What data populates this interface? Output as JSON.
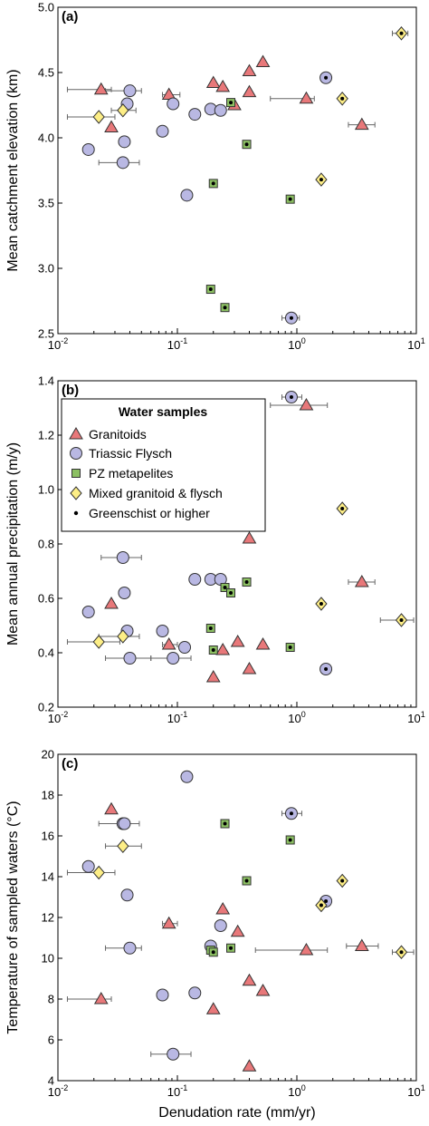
{
  "colors": {
    "granitoids": "#e8787a",
    "triassic": "#b9b8e3",
    "pz": "#8cc063",
    "mixed": "#fdee86",
    "stroke": "#333333",
    "errorbar": "#666666"
  },
  "chart_data": [
    {
      "type": "scatter",
      "panel_label": "(a)",
      "xlabel": "",
      "ylabel": "Mean catchment elevation (km)",
      "xscale": "log",
      "xlim": [
        0.01,
        10
      ],
      "ylim": [
        2.5,
        5.0
      ],
      "yticks": [
        2.5,
        3.0,
        3.5,
        4.0,
        4.5,
        5.0
      ],
      "ytick_labels": [
        "2.5",
        "3.0",
        "3.5",
        "4.0",
        "4.5",
        "5.0"
      ],
      "xtick_labels": [
        {
          "mantissa": "10",
          "exponent": "-2"
        },
        {
          "mantissa": "10",
          "exponent": "-1"
        },
        {
          "mantissa": "10",
          "exponent": "0"
        },
        {
          "mantissa": "10",
          "exponent": "1"
        }
      ],
      "series": [
        {
          "name": "Granitoids",
          "marker": "triangle",
          "points": [
            {
              "x": 0.023,
              "y": 4.37,
              "xlo": 0.012,
              "xhi": 0.028
            },
            {
              "x": 0.028,
              "y": 4.08
            },
            {
              "x": 0.085,
              "y": 4.33,
              "xlo": 0.075,
              "xhi": 0.105
            },
            {
              "x": 0.2,
              "y": 4.42
            },
            {
              "x": 0.24,
              "y": 4.39
            },
            {
              "x": 0.3,
              "y": 4.25
            },
            {
              "x": 0.4,
              "y": 4.51
            },
            {
              "x": 0.4,
              "y": 4.35
            },
            {
              "x": 0.52,
              "y": 4.58
            },
            {
              "x": 1.2,
              "y": 4.3,
              "xlo": 0.6,
              "xhi": 1.4
            },
            {
              "x": 3.5,
              "y": 4.1,
              "xlo": 2.7,
              "xhi": 4.5
            }
          ]
        },
        {
          "name": "Triassic Flysch",
          "marker": "circle",
          "points": [
            {
              "x": 0.018,
              "y": 3.91
            },
            {
              "x": 0.035,
              "y": 3.81,
              "xlo": 0.022,
              "xhi": 0.048
            },
            {
              "x": 0.036,
              "y": 3.97
            },
            {
              "x": 0.038,
              "y": 4.26
            },
            {
              "x": 0.04,
              "y": 4.36,
              "xlo": 0.025,
              "xhi": 0.05
            },
            {
              "x": 0.075,
              "y": 4.05
            },
            {
              "x": 0.092,
              "y": 4.26
            },
            {
              "x": 0.12,
              "y": 3.56
            },
            {
              "x": 0.14,
              "y": 4.18
            },
            {
              "x": 0.19,
              "y": 4.22
            },
            {
              "x": 0.23,
              "y": 4.21
            },
            {
              "x": 0.9,
              "y": 2.62,
              "xlo": 0.75,
              "xhi": 1.05,
              "green": true
            },
            {
              "x": 1.75,
              "y": 4.46,
              "green": true
            }
          ]
        },
        {
          "name": "PZ metapelites",
          "marker": "square",
          "points": [
            {
              "x": 0.19,
              "y": 2.84,
              "green": true
            },
            {
              "x": 0.2,
              "y": 3.65,
              "green": true
            },
            {
              "x": 0.25,
              "y": 2.7,
              "green": true
            },
            {
              "x": 0.28,
              "y": 4.27,
              "green": true
            },
            {
              "x": 0.38,
              "y": 3.95,
              "green": true
            },
            {
              "x": 0.88,
              "y": 3.53,
              "green": true
            }
          ]
        },
        {
          "name": "Mixed granitoid & flysch",
          "marker": "diamond",
          "points": [
            {
              "x": 0.022,
              "y": 4.16,
              "xlo": 0.012,
              "xhi": 0.03
            },
            {
              "x": 0.035,
              "y": 4.21,
              "xlo": 0.028,
              "xhi": 0.045
            },
            {
              "x": 1.6,
              "y": 3.68,
              "green": true
            },
            {
              "x": 2.4,
              "y": 4.3,
              "green": true
            },
            {
              "x": 7.5,
              "y": 4.8,
              "xlo": 6.3,
              "xhi": 8.5,
              "green": true
            }
          ]
        }
      ]
    },
    {
      "type": "scatter",
      "panel_label": "(b)",
      "xlabel": "",
      "ylabel": "Mean annual precipitation (m/y)",
      "xscale": "log",
      "xlim": [
        0.01,
        10
      ],
      "ylim": [
        0.2,
        1.4
      ],
      "yticks": [
        0.2,
        0.4,
        0.6,
        0.8,
        1.0,
        1.2,
        1.4
      ],
      "ytick_labels": [
        "0.2",
        "0.4",
        "0.6",
        "0.8",
        "1.0",
        "1.2",
        "1.4"
      ],
      "xtick_labels": [
        {
          "mantissa": "10",
          "exponent": "-2"
        },
        {
          "mantissa": "10",
          "exponent": "-1"
        },
        {
          "mantissa": "10",
          "exponent": "0"
        },
        {
          "mantissa": "10",
          "exponent": "1"
        }
      ],
      "legend": {
        "title": "Water samples",
        "entries": [
          {
            "label": "Granitoids",
            "marker": "triangle"
          },
          {
            "label": "Triassic Flysch",
            "marker": "circle"
          },
          {
            "label": "PZ metapelites",
            "marker": "square"
          },
          {
            "label": "Mixed granitoid & flysch",
            "marker": "diamond"
          },
          {
            "label": "Greenschist or higher",
            "marker": "dot"
          }
        ]
      },
      "series": [
        {
          "name": "Granitoids",
          "marker": "triangle",
          "points": [
            {
              "x": 0.028,
              "y": 0.58
            },
            {
              "x": 0.085,
              "y": 0.43,
              "xlo": 0.075,
              "xhi": 0.1
            },
            {
              "x": 0.2,
              "y": 0.31
            },
            {
              "x": 0.24,
              "y": 0.41
            },
            {
              "x": 0.32,
              "y": 0.44
            },
            {
              "x": 0.4,
              "y": 0.34
            },
            {
              "x": 0.4,
              "y": 0.82
            },
            {
              "x": 0.52,
              "y": 0.43
            },
            {
              "x": 1.2,
              "y": 1.31,
              "xlo": 0.6,
              "xhi": 1.8
            },
            {
              "x": 3.5,
              "y": 0.66,
              "xlo": 2.7,
              "xhi": 4.5
            }
          ]
        },
        {
          "name": "Triassic Flysch",
          "marker": "circle",
          "points": [
            {
              "x": 0.018,
              "y": 0.55
            },
            {
              "x": 0.035,
              "y": 0.75,
              "xlo": 0.023,
              "xhi": 0.05
            },
            {
              "x": 0.036,
              "y": 0.62
            },
            {
              "x": 0.038,
              "y": 0.48
            },
            {
              "x": 0.04,
              "y": 0.38,
              "xlo": 0.025,
              "xhi": 0.06
            },
            {
              "x": 0.075,
              "y": 0.48
            },
            {
              "x": 0.092,
              "y": 0.38,
              "xlo": 0.06,
              "xhi": 0.13
            },
            {
              "x": 0.115,
              "y": 0.42
            },
            {
              "x": 0.14,
              "y": 0.67
            },
            {
              "x": 0.19,
              "y": 0.67
            },
            {
              "x": 0.23,
              "y": 0.67
            },
            {
              "x": 0.9,
              "y": 1.34,
              "xlo": 0.75,
              "xhi": 1.1,
              "green": true
            },
            {
              "x": 1.75,
              "y": 0.34,
              "green": true
            }
          ]
        },
        {
          "name": "PZ metapelites",
          "marker": "square",
          "points": [
            {
              "x": 0.19,
              "y": 0.49,
              "green": true
            },
            {
              "x": 0.2,
              "y": 0.41,
              "green": true
            },
            {
              "x": 0.25,
              "y": 0.64,
              "green": true
            },
            {
              "x": 0.28,
              "y": 0.62,
              "green": true
            },
            {
              "x": 0.38,
              "y": 0.66,
              "green": true
            },
            {
              "x": 0.88,
              "y": 0.42,
              "green": true
            }
          ]
        },
        {
          "name": "Mixed granitoid & flysch",
          "marker": "diamond",
          "points": [
            {
              "x": 0.022,
              "y": 0.44,
              "xlo": 0.012,
              "xhi": 0.033
            },
            {
              "x": 0.035,
              "y": 0.46,
              "xlo": 0.022,
              "xhi": 0.048
            },
            {
              "x": 1.6,
              "y": 0.58,
              "green": true
            },
            {
              "x": 2.4,
              "y": 0.93,
              "green": true
            },
            {
              "x": 7.5,
              "y": 0.52,
              "xlo": 5.0,
              "xhi": 9.5,
              "green": true
            }
          ]
        }
      ]
    },
    {
      "type": "scatter",
      "panel_label": "(c)",
      "xlabel": "Denudation rate (mm/yr)",
      "ylabel": "Temperature of sampled waters (°C)",
      "xscale": "log",
      "xlim": [
        0.01,
        10
      ],
      "ylim": [
        4,
        20
      ],
      "yticks": [
        4,
        6,
        8,
        10,
        12,
        14,
        16,
        18,
        20
      ],
      "ytick_labels": [
        "4",
        "6",
        "8",
        "10",
        "12",
        "14",
        "16",
        "18",
        "20"
      ],
      "xtick_labels": [
        {
          "mantissa": "10",
          "exponent": "-2"
        },
        {
          "mantissa": "10",
          "exponent": "-1"
        },
        {
          "mantissa": "10",
          "exponent": "0"
        },
        {
          "mantissa": "10",
          "exponent": "1"
        }
      ],
      "series": [
        {
          "name": "Granitoids",
          "marker": "triangle",
          "points": [
            {
              "x": 0.023,
              "y": 8.0,
              "xlo": 0.012,
              "xhi": 0.028
            },
            {
              "x": 0.028,
              "y": 17.3
            },
            {
              "x": 0.085,
              "y": 11.7,
              "xlo": 0.075,
              "xhi": 0.1
            },
            {
              "x": 0.2,
              "y": 7.5
            },
            {
              "x": 0.24,
              "y": 12.4
            },
            {
              "x": 0.32,
              "y": 11.3
            },
            {
              "x": 0.4,
              "y": 8.9
            },
            {
              "x": 0.4,
              "y": 4.7
            },
            {
              "x": 0.52,
              "y": 8.4
            },
            {
              "x": 1.2,
              "y": 10.4,
              "xlo": 0.45,
              "xhi": 1.8
            },
            {
              "x": 3.5,
              "y": 10.6,
              "xlo": 2.6,
              "xhi": 4.8
            }
          ]
        },
        {
          "name": "Triassic Flysch",
          "marker": "circle",
          "points": [
            {
              "x": 0.018,
              "y": 14.5
            },
            {
              "x": 0.035,
              "y": 16.6,
              "xlo": 0.022,
              "xhi": 0.048
            },
            {
              "x": 0.036,
              "y": 16.6
            },
            {
              "x": 0.038,
              "y": 13.1
            },
            {
              "x": 0.04,
              "y": 10.5,
              "xlo": 0.025,
              "xhi": 0.05
            },
            {
              "x": 0.075,
              "y": 8.2
            },
            {
              "x": 0.092,
              "y": 5.3,
              "xlo": 0.06,
              "xhi": 0.13
            },
            {
              "x": 0.12,
              "y": 18.9
            },
            {
              "x": 0.14,
              "y": 8.3
            },
            {
              "x": 0.19,
              "y": 10.6
            },
            {
              "x": 0.23,
              "y": 11.6
            },
            {
              "x": 0.9,
              "y": 17.1,
              "xlo": 0.75,
              "xhi": 1.1,
              "green": true
            },
            {
              "x": 1.75,
              "y": 12.8,
              "green": true
            }
          ]
        },
        {
          "name": "PZ metapelites",
          "marker": "square",
          "points": [
            {
              "x": 0.19,
              "y": 10.4,
              "green": true
            },
            {
              "x": 0.2,
              "y": 10.3,
              "green": true
            },
            {
              "x": 0.25,
              "y": 16.6,
              "green": true
            },
            {
              "x": 0.28,
              "y": 10.5,
              "green": true
            },
            {
              "x": 0.38,
              "y": 13.8,
              "green": true
            },
            {
              "x": 0.88,
              "y": 15.8,
              "green": true
            }
          ]
        },
        {
          "name": "Mixed granitoid & flysch",
          "marker": "diamond",
          "points": [
            {
              "x": 0.022,
              "y": 14.2,
              "xlo": 0.012,
              "xhi": 0.03
            },
            {
              "x": 0.035,
              "y": 15.5,
              "xlo": 0.025,
              "xhi": 0.05
            },
            {
              "x": 1.6,
              "y": 12.6,
              "green": true
            },
            {
              "x": 2.4,
              "y": 13.8,
              "green": true
            },
            {
              "x": 7.5,
              "y": 10.3,
              "xlo": 6.3,
              "xhi": 9.5,
              "green": true
            }
          ]
        }
      ]
    }
  ]
}
